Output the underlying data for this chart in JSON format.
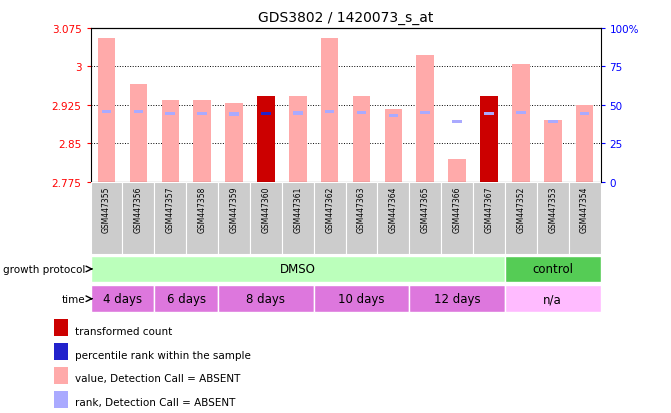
{
  "title": "GDS3802 / 1420073_s_at",
  "samples": [
    "GSM447355",
    "GSM447356",
    "GSM447357",
    "GSM447358",
    "GSM447359",
    "GSM447360",
    "GSM447361",
    "GSM447362",
    "GSM447363",
    "GSM447364",
    "GSM447365",
    "GSM447366",
    "GSM447367",
    "GSM447352",
    "GSM447353",
    "GSM447354"
  ],
  "ylim_left": [
    2.775,
    3.075
  ],
  "ylim_right": [
    0,
    100
  ],
  "yticks_left": [
    2.775,
    2.85,
    2.925,
    3.0,
    3.075
  ],
  "yticks_right": [
    0,
    25,
    50,
    75,
    100
  ],
  "ytick_labels_left": [
    "2.775",
    "2.85",
    "2.925",
    "3",
    "3.075"
  ],
  "ytick_labels_right": [
    "0",
    "25",
    "50",
    "75",
    "100%"
  ],
  "bar_values": [
    3.055,
    2.965,
    2.935,
    2.935,
    2.928,
    2.942,
    2.942,
    3.055,
    2.942,
    2.917,
    3.022,
    2.82,
    2.942,
    3.005,
    2.895,
    2.925
  ],
  "rank_values": [
    2.912,
    2.912,
    2.908,
    2.908,
    2.907,
    2.908,
    2.909,
    2.912,
    2.91,
    2.904,
    2.91,
    2.892,
    2.908,
    2.91,
    2.892,
    2.908
  ],
  "bar_colors_value": [
    "#ffaaaa",
    "#ffaaaa",
    "#ffaaaa",
    "#ffaaaa",
    "#ffaaaa",
    "#cc0000",
    "#ffaaaa",
    "#ffaaaa",
    "#ffaaaa",
    "#ffaaaa",
    "#ffaaaa",
    "#ffaaaa",
    "#cc0000",
    "#ffaaaa",
    "#ffaaaa",
    "#ffaaaa"
  ],
  "rank_colors": [
    "#aaaaff",
    "#aaaaff",
    "#aaaaff",
    "#aaaaff",
    "#aaaaff",
    "#2222cc",
    "#aaaaff",
    "#aaaaff",
    "#aaaaff",
    "#aaaaff",
    "#aaaaff",
    "#aaaaff",
    "#aaaaff",
    "#aaaaff",
    "#aaaaff",
    "#aaaaff"
  ],
  "ybase": 2.775,
  "growth_protocol_groups": [
    {
      "label": "DMSO",
      "start": 0,
      "end": 13,
      "color": "#bbffbb"
    },
    {
      "label": "control",
      "start": 13,
      "end": 16,
      "color": "#55cc55"
    }
  ],
  "time_groups": [
    {
      "label": "4 days",
      "start": 0,
      "end": 2,
      "color": "#dd77dd"
    },
    {
      "label": "6 days",
      "start": 2,
      "end": 4,
      "color": "#dd77dd"
    },
    {
      "label": "8 days",
      "start": 4,
      "end": 7,
      "color": "#dd77dd"
    },
    {
      "label": "10 days",
      "start": 7,
      "end": 10,
      "color": "#dd77dd"
    },
    {
      "label": "12 days",
      "start": 10,
      "end": 13,
      "color": "#dd77dd"
    },
    {
      "label": "n/a",
      "start": 13,
      "end": 16,
      "color": "#ffbbff"
    }
  ],
  "legend_items": [
    {
      "label": "transformed count",
      "color": "#cc0000"
    },
    {
      "label": "percentile rank within the sample",
      "color": "#2222cc"
    },
    {
      "label": "value, Detection Call = ABSENT",
      "color": "#ffaaaa"
    },
    {
      "label": "rank, Detection Call = ABSENT",
      "color": "#aaaaff"
    }
  ]
}
